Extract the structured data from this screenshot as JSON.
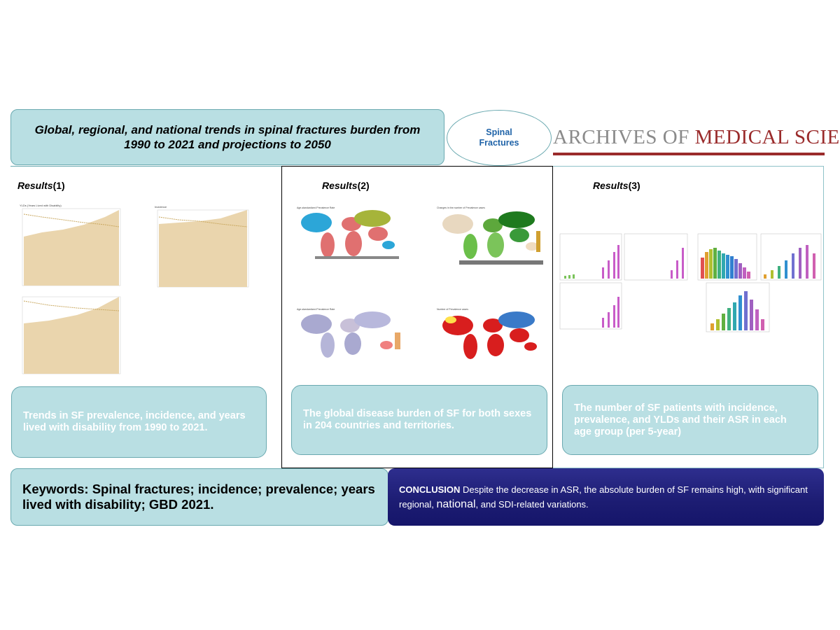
{
  "title": "Global, regional, and national trends in spinal fractures burden from 1990 to 2021 and projections to 2050",
  "oval_label": "Spinal\nFractures",
  "logo": {
    "part1": "ARCHIVES OF ",
    "part2": "MEDICAL SCIENCE"
  },
  "results": [
    {
      "label": "Results",
      "num": "(1)",
      "caption": "Trends in SF prevalence, incidence, and years lived with disability from 1990 to 2021."
    },
    {
      "label": "Results",
      "num": "(2)",
      "caption": "The global disease burden of SF for both sexes in 204 countries and territories."
    },
    {
      "label": "Results",
      "num": "(3)",
      "caption": "The number of SF patients with incidence, prevalence, and YLDs and their ASR in each age group (per 5-year)"
    }
  ],
  "keywords": "Keywords: Spinal fractures; incidence; prevalence; years lived with disability; GBD 2021.",
  "conclusion": {
    "label": "CONCLUSION",
    "text_a": " Despite the decrease in ASR, the absolute burden of SF remains high, with significant regional, ",
    "text_big": "national",
    "text_b": ", and SDI-related variations."
  },
  "mini_chart_titles": {
    "c1": "YLDs (Years Lived with Disability)",
    "c2": "Incidence",
    "m1": "Age-standardized Prevalence Rate",
    "m2": "Changes in the number of Prevalence cases",
    "m3": "Age-standardized Prevalence Rate",
    "m4": "Number of Prevalence cases"
  },
  "colors": {
    "accent_fill": "#b9dfe3",
    "accent_border": "#6aa9b0",
    "brand_red": "#9a2b2b",
    "conclusion_bg": "#1c1c72"
  }
}
